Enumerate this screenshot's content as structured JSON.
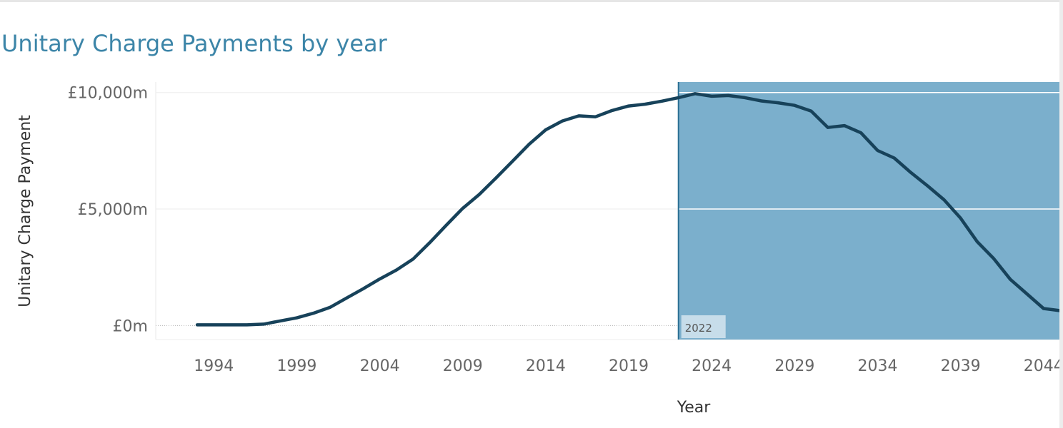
{
  "title": "Unitary Charge Payments by year",
  "colors": {
    "title": "#3c85a8",
    "line": "#17425a",
    "highlight": "#7bafcc",
    "highlight_edge": "#2b6f93",
    "grid": "#eeeeee"
  },
  "chart_data": {
    "type": "line",
    "title": "Unitary Charge Payments by year",
    "xlabel": "Year",
    "ylabel": "Unitary Charge Payment",
    "x_ticks": [
      "1994",
      "1999",
      "2004",
      "2009",
      "2014",
      "2019",
      "2024",
      "2029",
      "2034",
      "2039",
      "2044"
    ],
    "y_ticks": [
      "£0m",
      "£5,000m",
      "£10,000m"
    ],
    "y_tick_values": [
      0,
      5000,
      10000
    ],
    "xlim": [
      1990.5,
      2045
    ],
    "ylim": [
      -600,
      10450
    ],
    "grid": true,
    "highlight": {
      "from": 2022,
      "to": 2045,
      "label": "2022"
    },
    "series": [
      {
        "x": [
          1993,
          1994,
          1995,
          1996,
          1997,
          1998,
          1999,
          2000,
          2001,
          2002,
          2003,
          2004,
          2005,
          2006,
          2007,
          2008,
          2009,
          2010,
          2011,
          2012,
          2013,
          2014,
          2015,
          2016,
          2017,
          2018,
          2019,
          2020,
          2021,
          2022,
          2023,
          2024,
          2025,
          2026,
          2027,
          2028,
          2029,
          2030,
          2031,
          2032,
          2033,
          2034,
          2035,
          2036,
          2037,
          2038,
          2039,
          2040,
          2041,
          2042,
          2043,
          2044,
          2045
        ],
        "values": [
          30,
          30,
          30,
          30,
          60,
          200,
          330,
          530,
          780,
          1180,
          1580,
          2000,
          2380,
          2850,
          3550,
          4300,
          5030,
          5630,
          6330,
          7050,
          7780,
          8400,
          8780,
          9000,
          8960,
          9230,
          9420,
          9500,
          9630,
          9780,
          9950,
          9840,
          9870,
          9780,
          9640,
          9560,
          9450,
          9200,
          8500,
          8580,
          8270,
          7510,
          7190,
          6570,
          6000,
          5400,
          4610,
          3600,
          2870,
          1980,
          1360,
          730,
          640
        ]
      }
    ]
  }
}
